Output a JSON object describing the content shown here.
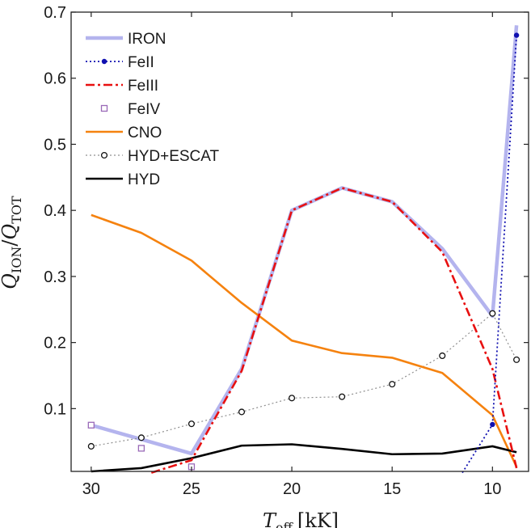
{
  "chart_data": {
    "type": "line",
    "xlabel": "T_eff [kK]",
    "xlabel_main": "T",
    "xlabel_sub": "eff",
    "xlabel_unit": "[kK]",
    "ylabel": "Q_ION/Q_TOT",
    "ylabel_num": "Q",
    "ylabel_num_sub": "ION",
    "ylabel_slash": "/",
    "ylabel_den": "Q",
    "ylabel_den_sub": "TOT",
    "xlim": [
      31,
      8.2
    ],
    "ylim": [
      0.005,
      0.7
    ],
    "xticks": [
      30,
      25,
      20,
      15,
      10
    ],
    "yticks": [
      0.1,
      0.2,
      0.3,
      0.4,
      0.5,
      0.6,
      0.7
    ],
    "grid": false,
    "legend_position": "top-left",
    "series": [
      {
        "name": "IRON",
        "style": "thick-line",
        "color": "#b4b4ee",
        "x": [
          30,
          25,
          22.5,
          20,
          17.5,
          15,
          12.5,
          10,
          8.8
        ],
        "y": [
          0.075,
          0.032,
          0.16,
          0.4,
          0.434,
          0.413,
          0.342,
          0.24,
          0.68
        ]
      },
      {
        "name": "FeII",
        "style": "dotted-dot-markers",
        "color": "#1010b0",
        "x": [
          11.5,
          10,
          8.8
        ],
        "y": [
          0.003,
          0.076,
          0.665
        ]
      },
      {
        "name": "FeIII",
        "style": "dashdot",
        "color": "#e81010",
        "x": [
          27,
          25,
          22.5,
          20,
          17.5,
          15,
          12.5,
          10,
          8.8
        ],
        "y": [
          0.003,
          0.022,
          0.157,
          0.4,
          0.434,
          0.413,
          0.337,
          0.16,
          0.01
        ]
      },
      {
        "name": "FeIV",
        "style": "square-markers",
        "color": "#9a6ab8",
        "x": [
          30,
          27.5,
          25
        ],
        "y": [
          0.075,
          0.04,
          0.012
        ]
      },
      {
        "name": "CNO",
        "style": "line",
        "color": "#f5820f",
        "x": [
          30,
          27.5,
          25,
          22.5,
          20,
          17.5,
          15,
          12.5,
          10,
          8.8
        ],
        "y": [
          0.393,
          0.366,
          0.324,
          0.26,
          0.203,
          0.184,
          0.177,
          0.154,
          0.09,
          0.012
        ]
      },
      {
        "name": "HYD+ESCAT",
        "style": "dotted-circle-markers",
        "color": "#909090",
        "x": [
          30,
          27.5,
          25,
          22.5,
          20,
          17.5,
          15,
          12.5,
          10,
          8.8
        ],
        "y": [
          0.043,
          0.056,
          0.077,
          0.095,
          0.116,
          0.118,
          0.137,
          0.18,
          0.244,
          0.174
        ]
      },
      {
        "name": "HYD",
        "style": "line",
        "color": "#000000",
        "x": [
          30,
          27.5,
          25,
          22.5,
          20,
          17.5,
          15,
          12.5,
          10,
          8.8
        ],
        "y": [
          0.005,
          0.01,
          0.025,
          0.044,
          0.046,
          0.039,
          0.031,
          0.032,
          0.043,
          0.034
        ]
      }
    ]
  }
}
